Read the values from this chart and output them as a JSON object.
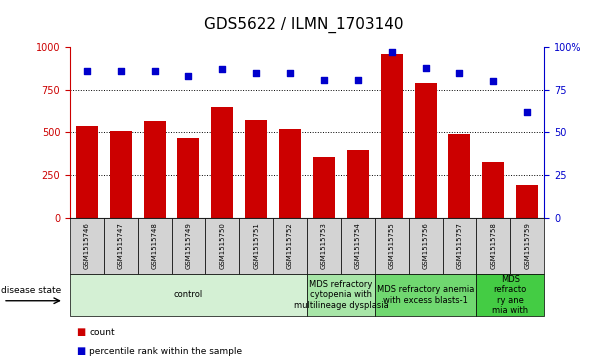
{
  "title": "GDS5622 / ILMN_1703140",
  "samples": [
    "GSM1515746",
    "GSM1515747",
    "GSM1515748",
    "GSM1515749",
    "GSM1515750",
    "GSM1515751",
    "GSM1515752",
    "GSM1515753",
    "GSM1515754",
    "GSM1515755",
    "GSM1515756",
    "GSM1515757",
    "GSM1515758",
    "GSM1515759"
  ],
  "counts": [
    540,
    510,
    565,
    470,
    650,
    575,
    520,
    355,
    395,
    960,
    790,
    490,
    325,
    195
  ],
  "percentiles": [
    86,
    86,
    86,
    83,
    87,
    85,
    85,
    81,
    81,
    97,
    88,
    85,
    80,
    62
  ],
  "bar_color": "#cc0000",
  "dot_color": "#0000cc",
  "ylim_left": [
    0,
    1000
  ],
  "ylim_right": [
    0,
    100
  ],
  "yticks_left": [
    0,
    250,
    500,
    750,
    1000
  ],
  "yticks_right": [
    0,
    25,
    50,
    75,
    100
  ],
  "disease_groups": [
    {
      "label": "control",
      "start": 0,
      "end": 7,
      "color": "#d4f0d4"
    },
    {
      "label": "MDS refractory\ncytopenia with\nmultilineage dysplasia",
      "start": 7,
      "end": 9,
      "color": "#a8e6a8"
    },
    {
      "label": "MDS refractory anemia\nwith excess blasts-1",
      "start": 9,
      "end": 12,
      "color": "#70d870"
    },
    {
      "label": "MDS\nrefracto\nry ane\nmia with",
      "start": 12,
      "end": 14,
      "color": "#44cc44"
    }
  ],
  "disease_state_label": "disease state",
  "legend_count_label": "count",
  "legend_pct_label": "percentile rank within the sample",
  "title_fontsize": 11,
  "tick_fontsize": 7,
  "label_fontsize": 6,
  "ds_fontsize": 6
}
